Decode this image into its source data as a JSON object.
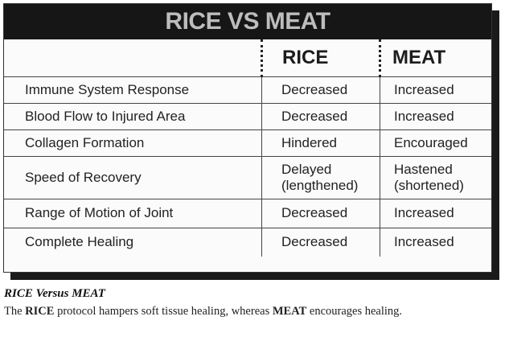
{
  "table": {
    "title": "RICE VS MEAT",
    "headers": [
      "",
      "RICE",
      "MEAT"
    ],
    "rows": [
      [
        "Immune System Response",
        "Decreased",
        "Increased"
      ],
      [
        "Blood Flow to Injured Area",
        "Decreased",
        "Increased"
      ],
      [
        "Collagen Formation",
        "Hindered",
        "Encouraged"
      ],
      [
        "Speed of Recovery",
        "Delayed (lengthened)",
        "Hastened (shortened)"
      ],
      [
        "Range of Motion of Joint",
        "Decreased",
        "Increased"
      ],
      [
        "Complete Healing",
        "Decreased",
        "Increased"
      ]
    ]
  },
  "caption": {
    "title": "RICE Versus MEAT",
    "text_1": "The ",
    "term_1": "RICE",
    "text_2": " protocol hampers soft tissue healing, whereas ",
    "term_2": "MEAT",
    "text_3": " encourages healing."
  }
}
